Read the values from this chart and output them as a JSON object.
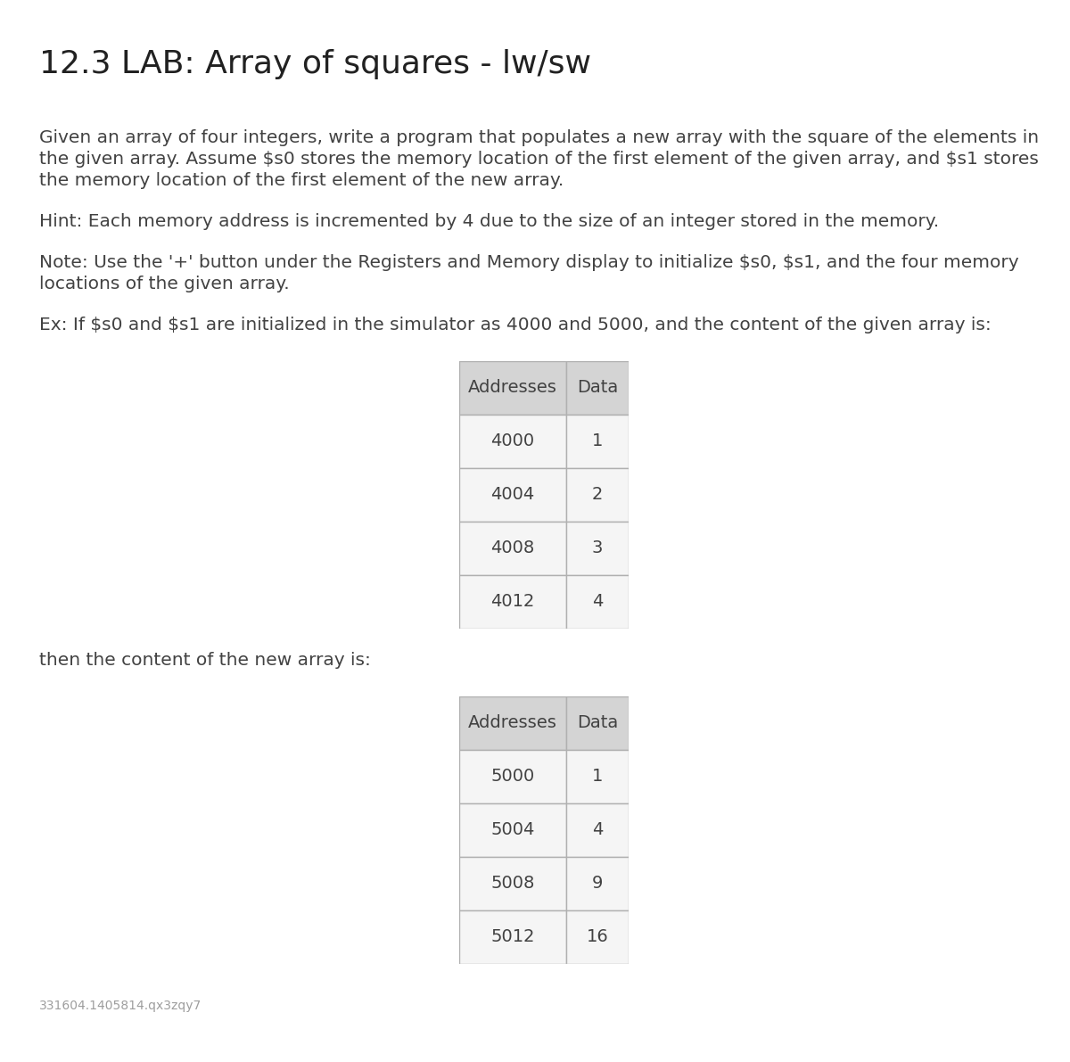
{
  "title": "12.3 LAB: Array of squares - lw/sw",
  "bg_color": "#ffffff",
  "title_color": "#212121",
  "title_fontsize": 26,
  "body_fontsize": 14.5,
  "body_color": "#424242",
  "paragraph1_lines": [
    "Given an array of four integers, write a program that populates a new array with the square of the elements in",
    "the given array. Assume $s0 stores the memory location of the first element of the given array, and $s1 stores",
    "the memory location of the first element of the new array."
  ],
  "paragraph2": "Hint: Each memory address is incremented by 4 due to the size of an integer stored in the memory.",
  "paragraph3_lines": [
    "Note: Use the '+' button under the Registers and Memory display to initialize $s0, $s1, and the four memory",
    "locations of the given array."
  ],
  "paragraph4": "Ex: If $s0 and $s1 are initialized in the simulator as 4000 and 5000, and the content of the given array is:",
  "table1_headers": [
    "Addresses",
    "Data"
  ],
  "table1_rows": [
    [
      "4000",
      "1"
    ],
    [
      "4004",
      "2"
    ],
    [
      "4008",
      "3"
    ],
    [
      "4012",
      "4"
    ]
  ],
  "paragraph5": "then the content of the new array is:",
  "table2_headers": [
    "Addresses",
    "Data"
  ],
  "table2_rows": [
    [
      "5000",
      "1"
    ],
    [
      "5004",
      "4"
    ],
    [
      "5008",
      "9"
    ],
    [
      "5012",
      "16"
    ]
  ],
  "footer_text": "331604.1405814.qx3zqy7",
  "footer_color": "#9e9e9e",
  "footer_fontsize": 10,
  "table_header_bg": "#d4d4d4",
  "table_row_bg": "#f5f5f5",
  "table_border_color": "#b0b0b0",
  "table_text_color": "#424242",
  "table_header_fontsize": 14,
  "table_data_fontsize": 14,
  "green_bar_color": "#4caf50"
}
